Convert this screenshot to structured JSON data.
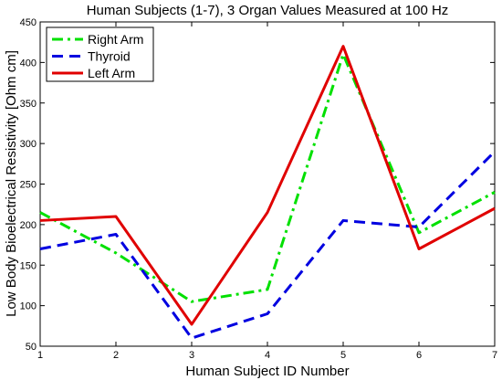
{
  "chart_data": {
    "type": "line",
    "title": "Human Subjects (1-7), 3 Organ Values Measured at 100 Hz",
    "xlabel": "Human Subject ID Number",
    "ylabel": "Low Body Bioelectrical Resistivity [Ohm cm]",
    "x": [
      1,
      2,
      3,
      4,
      5,
      6,
      7
    ],
    "xlim": [
      1,
      7
    ],
    "ylim": [
      50,
      450
    ],
    "xticks": [
      "1",
      "2",
      "3",
      "4",
      "5",
      "6",
      "7"
    ],
    "yticks": [
      "50",
      "100",
      "150",
      "200",
      "250",
      "300",
      "350",
      "400",
      "450"
    ],
    "grid": false,
    "legend_position": "top-left",
    "series": [
      {
        "name": "Right Arm",
        "color": "#00e000",
        "style": "dash-dot",
        "values": [
          215,
          165,
          105,
          120,
          410,
          190,
          240
        ]
      },
      {
        "name": "Thyroid",
        "color": "#0000e0",
        "style": "dashed",
        "values": [
          170,
          188,
          60,
          90,
          205,
          197,
          290
        ]
      },
      {
        "name": "Left Arm",
        "color": "#e00000",
        "style": "solid",
        "values": [
          205,
          210,
          77,
          215,
          420,
          170,
          220
        ]
      }
    ]
  }
}
